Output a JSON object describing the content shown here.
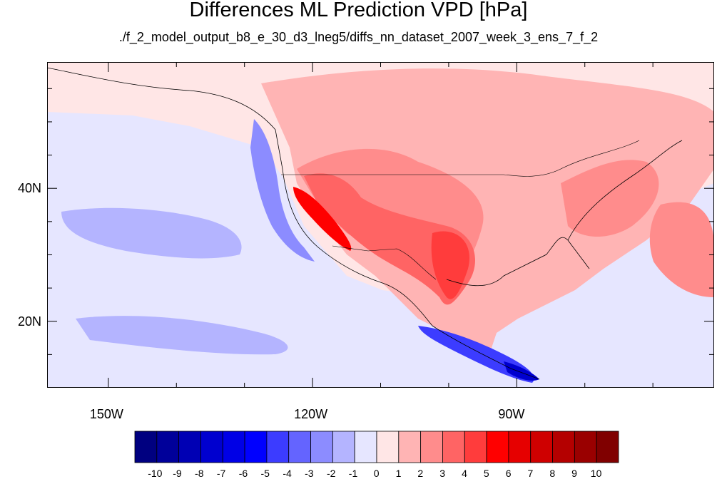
{
  "title": "Differences ML Prediction VPD [hPa]",
  "subtitle": "./f_2_model_output_b8_e_30_d3_lneg5/diffs_nn_dataset_2007_week_3_ens_7_f_2",
  "map": {
    "projection": "cylindrical equidistant",
    "lon_range": [
      -159,
      -61
    ],
    "lat_range": [
      10,
      59
    ],
    "lat_ticks": [
      {
        "value": 40,
        "label": "40N"
      },
      {
        "value": 20,
        "label": "20N"
      }
    ],
    "lon_ticks": [
      {
        "value": -150,
        "label": "150W"
      },
      {
        "value": -120,
        "label": "120W"
      },
      {
        "value": -90,
        "label": "90W"
      }
    ],
    "regions": [
      {
        "name": "land-warm",
        "level": 2
      },
      {
        "name": "interior-west",
        "level": 4
      },
      {
        "name": "southwest-hot",
        "level": 6
      },
      {
        "name": "baja-coast-hot",
        "level": 7
      },
      {
        "name": "gulf-coast-hot",
        "level": 6
      },
      {
        "name": "east-coast",
        "level": 4
      },
      {
        "name": "pacific-cool",
        "level": -2
      },
      {
        "name": "pacific-coast-cool",
        "level": -4
      },
      {
        "name": "mexico-pacific-cold",
        "level": -6
      },
      {
        "name": "atlantic-warm",
        "level": 2
      }
    ]
  },
  "colorbar": {
    "colors": [
      "#000080",
      "#00009a",
      "#0000b4",
      "#0000cf",
      "#0000e6",
      "#0000ff",
      "#3c3cff",
      "#6464ff",
      "#8c8cff",
      "#b4b4ff",
      "#e6e6ff",
      "#ffe6e6",
      "#ffb4b4",
      "#ff8c8c",
      "#ff6464",
      "#ff3c3c",
      "#ff0000",
      "#e60000",
      "#cf0000",
      "#b40000",
      "#9a0000",
      "#800000"
    ],
    "labels": [
      "-10",
      "-9",
      "-8",
      "-7",
      "-6",
      "-5",
      "-4",
      "-3",
      "-2",
      "-1",
      "0",
      "1",
      "2",
      "3",
      "4",
      "5",
      "6",
      "7",
      "8",
      "9",
      "10"
    ]
  }
}
